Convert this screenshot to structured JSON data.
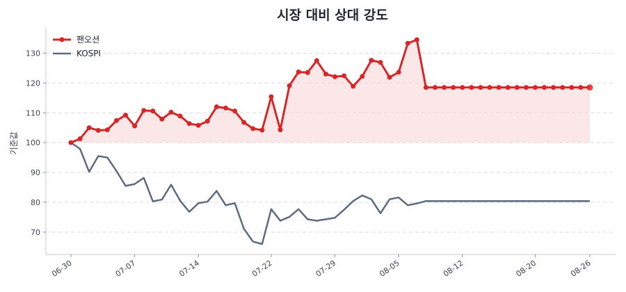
{
  "chart_data": {
    "type": "line",
    "title": "시장 대비 상대 강도",
    "xlabel": "",
    "ylabel": "기준값",
    "ylim": [
      62.5,
      138.5
    ],
    "yticks": [
      70,
      80,
      90,
      100,
      110,
      120,
      130
    ],
    "baseline": 100,
    "grid": "horizontal dashed",
    "legend_position": "top-left",
    "colors": {
      "stock": "#d62728",
      "stock_fill": "#f7d4d4",
      "index": "#5c6b80"
    },
    "x": [
      "06-30",
      "07-01",
      "07-02",
      "07-03",
      "07-04",
      "07-05",
      "07-06",
      "07-07",
      "07-08",
      "07-09",
      "07-10",
      "07-11",
      "07-12",
      "07-13",
      "07-14",
      "07-15",
      "07-16",
      "07-17",
      "07-18",
      "07-19",
      "07-20",
      "07-21",
      "07-22",
      "07-23",
      "07-24",
      "07-25",
      "07-26",
      "07-27",
      "07-28",
      "07-29",
      "07-30",
      "07-31",
      "08-01",
      "08-02",
      "08-03",
      "08-04",
      "08-05",
      "08-06",
      "08-07",
      "08-08",
      "08-09",
      "08-10",
      "08-11",
      "08-12",
      "08-13",
      "08-14",
      "08-15",
      "08-16",
      "08-17",
      "08-18",
      "08-19",
      "08-20",
      "08-21",
      "08-22",
      "08-23",
      "08-24",
      "08-25",
      "08-26"
    ],
    "xtick_labels": [
      "06-30",
      "07-07",
      "07-14",
      "07-22",
      "07-29",
      "08-05",
      "08-12",
      "08-20",
      "08-26"
    ],
    "series": [
      {
        "name": "팬오션",
        "x": [
          "06-30",
          "07-01",
          "07-02",
          "07-03",
          "07-04",
          "07-05",
          "07-06",
          "07-07",
          "07-08",
          "07-09",
          "07-10",
          "07-11",
          "07-12",
          "07-13",
          "07-14",
          "07-15",
          "07-16",
          "07-17",
          "07-18",
          "07-19",
          "07-20",
          "07-21",
          "07-22",
          "07-23",
          "07-24",
          "07-25",
          "07-26",
          "07-27",
          "07-28",
          "07-29",
          "07-30",
          "07-31",
          "08-01",
          "08-02",
          "08-03",
          "08-04",
          "08-05",
          "08-06",
          "08-07",
          "08-08",
          "08-09",
          "08-10",
          "08-11",
          "08-12",
          "08-13",
          "08-14",
          "08-15",
          "08-16",
          "08-17",
          "08-18",
          "08-19",
          "08-20",
          "08-21",
          "08-22",
          "08-23",
          "08-24",
          "08-25",
          "08-26"
        ],
        "values": [
          100.0,
          101.3,
          105.0,
          104.1,
          104.3,
          107.4,
          109.2,
          105.6,
          110.8,
          110.6,
          107.9,
          110.2,
          108.9,
          106.4,
          105.8,
          107.2,
          112.0,
          111.6,
          110.6,
          106.8,
          104.7,
          104.2,
          115.4,
          104.3,
          119.1,
          123.7,
          123.5,
          127.5,
          123.0,
          122.1,
          122.4,
          118.9,
          122.2,
          127.6,
          126.9,
          121.9,
          123.6,
          133.3,
          134.5,
          118.5,
          118.5,
          118.5,
          118.5,
          118.5,
          118.5,
          118.5,
          118.5,
          118.5,
          118.5,
          118.5,
          118.5,
          118.5,
          118.5,
          118.5,
          118.5,
          118.5,
          118.5,
          118.5
        ]
      },
      {
        "name": "KOSPI",
        "values": [
          100.0,
          97.9,
          90.2,
          95.5,
          95.0,
          90.5,
          85.5,
          86.1,
          88.2,
          80.3,
          80.9,
          85.9,
          80.5,
          76.8,
          79.7,
          80.2,
          83.8,
          79.0,
          79.7,
          71.1,
          66.8,
          66.0,
          77.7,
          73.8,
          75.1,
          77.7,
          74.3,
          73.8,
          74.3,
          74.8,
          77.5,
          80.4,
          82.3,
          81.0,
          76.3,
          81.0,
          81.6,
          79.0,
          79.6,
          80.4,
          80.4,
          80.4,
          80.4,
          80.4,
          80.4,
          80.4,
          80.4,
          80.4,
          80.4,
          80.4,
          80.4,
          80.4,
          80.4,
          80.4,
          80.4,
          80.4,
          80.4,
          80.4
        ]
      }
    ]
  }
}
